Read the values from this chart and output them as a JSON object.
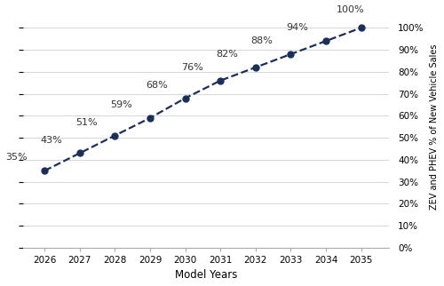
{
  "years": [
    2026,
    2027,
    2028,
    2029,
    2030,
    2031,
    2032,
    2033,
    2034,
    2035
  ],
  "values": [
    35,
    43,
    51,
    59,
    68,
    76,
    82,
    88,
    94,
    100
  ],
  "labels": [
    "35%",
    "43%",
    "51%",
    "59%",
    "68%",
    "76%",
    "82%",
    "88%",
    "94%",
    "100%"
  ],
  "line_color": "#1a2f5a",
  "marker_color": "#1a2f5a",
  "line_style": "--",
  "marker": "o",
  "marker_size": 5,
  "line_width": 1.6,
  "xlabel": "Model Years",
  "ylabel": "ZEV and PHEV % of New Vehicle Sales",
  "xlim": [
    2025.4,
    2035.8
  ],
  "ylim": [
    0,
    110
  ],
  "yticks": [
    0,
    10,
    20,
    30,
    40,
    50,
    60,
    70,
    80,
    90,
    100
  ],
  "ytick_labels": [
    "0%",
    "10%",
    "20%",
    "30%",
    "40%",
    "50%",
    "60%",
    "70%",
    "80%",
    "90%",
    "100%"
  ],
  "background_color": "#ffffff",
  "grid_color": "#d0d0d0",
  "annotation_fontsize": 8.0,
  "label_color": "#333333"
}
